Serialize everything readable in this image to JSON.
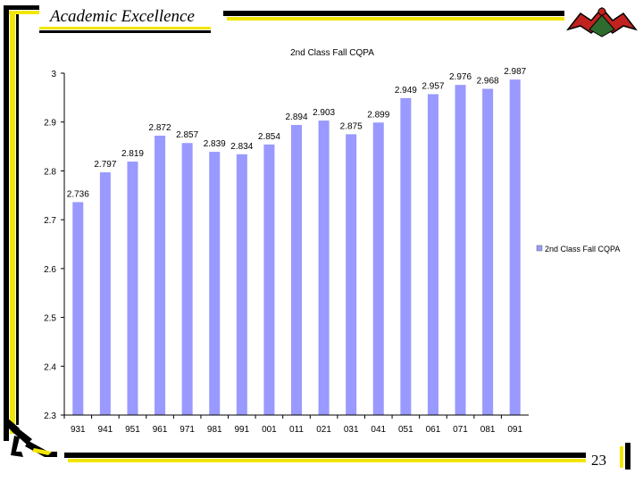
{
  "slide": {
    "title": "Academic Excellence",
    "page_number": "23"
  },
  "colors": {
    "bar_fill": "#9999ff",
    "frame_yellow": "#f2e600",
    "frame_black": "#000000",
    "crest_red": "#c0231f",
    "crest_green": "#2f6b2f"
  },
  "icons": {
    "crest": "eagle-crest-icon",
    "runner": "runner-logo-icon"
  },
  "chart_data": {
    "type": "bar",
    "title": "2nd Class Fall CQPA",
    "categories": [
      "931",
      "941",
      "951",
      "961",
      "971",
      "981",
      "991",
      "001",
      "011",
      "021",
      "031",
      "041",
      "051",
      "061",
      "071",
      "081",
      "091"
    ],
    "series": [
      {
        "name": "2nd Class Fall CQPA",
        "values": [
          2.736,
          2.797,
          2.819,
          2.872,
          2.857,
          2.839,
          2.834,
          2.854,
          2.894,
          2.903,
          2.875,
          2.899,
          2.949,
          2.957,
          2.976,
          2.968,
          2.987
        ]
      }
    ],
    "value_labels": [
      "2.736",
      "2.797",
      "2.819",
      "2.872",
      "2.857",
      "2.839",
      "2.834",
      "2.854",
      "2.894",
      "2.903",
      "2.875",
      "2.899",
      "2.949",
      "2.957",
      "2.976",
      "2.968",
      "2.987"
    ],
    "y_ticks": [
      "2.3",
      "2.4",
      "2.5",
      "2.6",
      "2.7",
      "2.8",
      "2.9",
      "3"
    ],
    "ylim": [
      2.3,
      3.0
    ],
    "xlabel": "",
    "ylabel": "",
    "grid": false,
    "legend_position": "right"
  }
}
